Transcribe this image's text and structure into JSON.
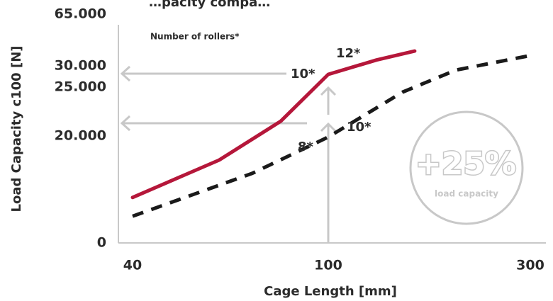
{
  "chart_data": {
    "type": "line",
    "title": "…pacity compa…",
    "xlabel": "Cage Length [mm]",
    "ylabel": "Load Capacity c100 [N]",
    "x_ticks": [
      "40",
      "100",
      "300"
    ],
    "y_ticks": [
      "0",
      "20.000",
      "25.000",
      "30.000",
      "65.000"
    ],
    "xlim": [
      40,
      300
    ],
    "ylim": [
      0,
      65000
    ],
    "grid": false,
    "legend_title": "Number of rollers*",
    "series": [
      {
        "style": "solid",
        "color": "#b5173a",
        "x": [
          40,
          60,
          80,
          100,
          130,
          160
        ],
        "y": [
          8500,
          15500,
          21500,
          28000,
          34000,
          40000
        ]
      },
      {
        "style": "dashed",
        "color": "#1a1a1a",
        "x": [
          40,
          70,
          100,
          150,
          200,
          300
        ],
        "y": [
          5000,
          13000,
          19800,
          24500,
          29000,
          37000
        ]
      }
    ],
    "annotations": [
      "12*",
      "10*",
      "10*",
      "8*"
    ],
    "badge": {
      "value": "+25%",
      "label": "load capacity"
    }
  }
}
